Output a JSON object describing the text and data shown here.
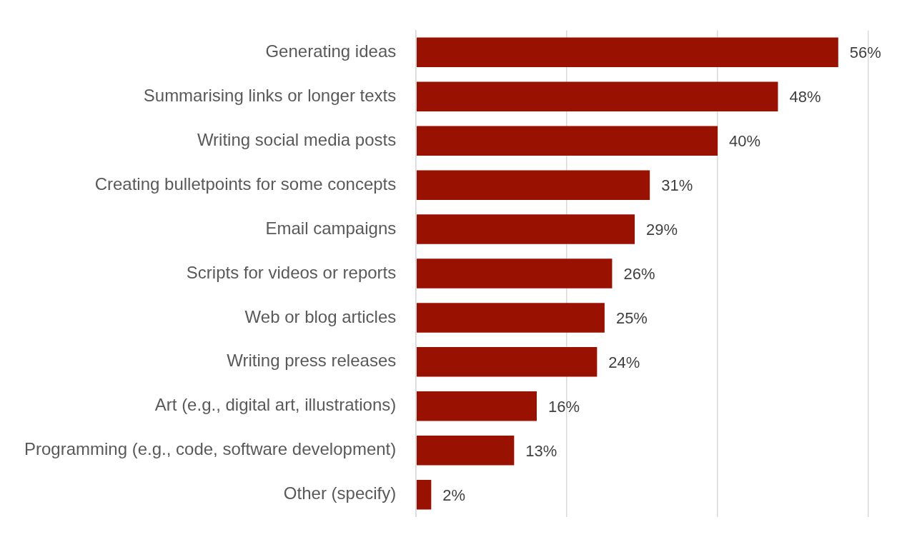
{
  "chart_data": {
    "type": "bar",
    "orientation": "horizontal",
    "categories": [
      "Generating ideas",
      "Summarising links or longer texts",
      "Writing social media posts",
      "Creating bulletpoints for some concepts",
      "Email campaigns",
      "Scripts for videos or reports",
      "Web or blog articles",
      "Writing press releases",
      "Art (e.g., digital art, illustrations)",
      "Programming (e.g., code, software development)",
      "Other (specify)"
    ],
    "values": [
      56,
      48,
      40,
      31,
      29,
      26,
      25,
      24,
      16,
      13,
      2
    ],
    "value_labels": [
      "56%",
      "48%",
      "40%",
      "31%",
      "29%",
      "26%",
      "25%",
      "24%",
      "16%",
      "13%",
      "2%"
    ],
    "color": "#991100",
    "xlim": [
      0,
      60
    ],
    "xticks": [
      {
        "value": 0,
        "label": null
      },
      {
        "value": 20,
        "label": null
      },
      {
        "value": 40,
        "label": null
      },
      {
        "value": 60,
        "label": null
      }
    ],
    "grid": "x",
    "tick_labels": "y"
  }
}
